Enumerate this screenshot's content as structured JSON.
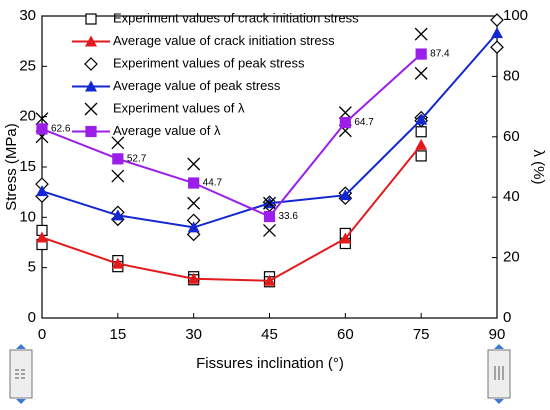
{
  "chart_data": {
    "type": "line",
    "x_label": "Fissures inclination (°)",
    "y_label": "Stress (MPa)",
    "y2_label": "λ (%)",
    "xlim": [
      0,
      90
    ],
    "xticks": [
      0,
      15,
      30,
      45,
      60,
      75,
      90
    ],
    "ylim": [
      0,
      30
    ],
    "yticks": [
      0,
      5,
      10,
      15,
      20,
      25,
      30
    ],
    "y2lim": [
      0,
      100
    ],
    "y2ticks": [
      0,
      20,
      40,
      60,
      80,
      100
    ],
    "legend": "upper left",
    "series": [
      {
        "name": "Experiment values of crack initiation stress",
        "color": "#000000",
        "marker": "square",
        "line": false,
        "x": [
          0,
          0,
          15,
          15,
          30,
          30,
          45,
          45,
          60,
          60,
          75,
          75
        ],
        "values": [
          8.7,
          7.3,
          5.7,
          5.1,
          4.1,
          3.8,
          4.1,
          3.6,
          8.4,
          7.4,
          18.5,
          16.1
        ]
      },
      {
        "name": "Average value of crack initiation stress",
        "color": "#e31a1c",
        "marker": "triangle",
        "line": true,
        "x": [
          0,
          15,
          30,
          45,
          60,
          75
        ],
        "values": [
          8.0,
          5.4,
          3.9,
          3.7,
          7.9,
          17.2
        ]
      },
      {
        "name": "Experiment values of peak stress",
        "color": "#000000",
        "marker": "diamond",
        "line": false,
        "x": [
          0,
          0,
          15,
          15,
          30,
          30,
          45,
          45,
          60,
          60,
          75,
          75,
          90,
          90
        ],
        "values": [
          13.3,
          12.1,
          10.5,
          9.8,
          9.7,
          8.3,
          11.5,
          11.2,
          12.4,
          11.9,
          19.9,
          19.6,
          29.6,
          26.9
        ]
      },
      {
        "name": "Average value of peak stress",
        "color": "#1428d2",
        "marker": "triangle",
        "line": true,
        "x": [
          0,
          15,
          30,
          45,
          60,
          75,
          90
        ],
        "values": [
          12.6,
          10.2,
          9.0,
          11.4,
          12.2,
          19.7,
          28.3
        ]
      },
      {
        "name": "Experiment values of λ",
        "color": "#000000",
        "marker": "cross",
        "line": false,
        "axis": "y2",
        "x": [
          0,
          0,
          15,
          15,
          30,
          30,
          45,
          45,
          60,
          60,
          75,
          75
        ],
        "values": [
          66,
          60,
          58,
          47,
          51,
          38,
          38,
          29,
          68,
          62,
          94,
          81
        ]
      },
      {
        "name": "Average value of λ",
        "color": "#9b1fe8",
        "marker": "square",
        "line": true,
        "axis": "y2",
        "data_labels": true,
        "x": [
          0,
          15,
          30,
          45,
          60,
          75
        ],
        "values": [
          62.6,
          52.7,
          44.7,
          33.6,
          64.7,
          87.4
        ]
      }
    ]
  }
}
